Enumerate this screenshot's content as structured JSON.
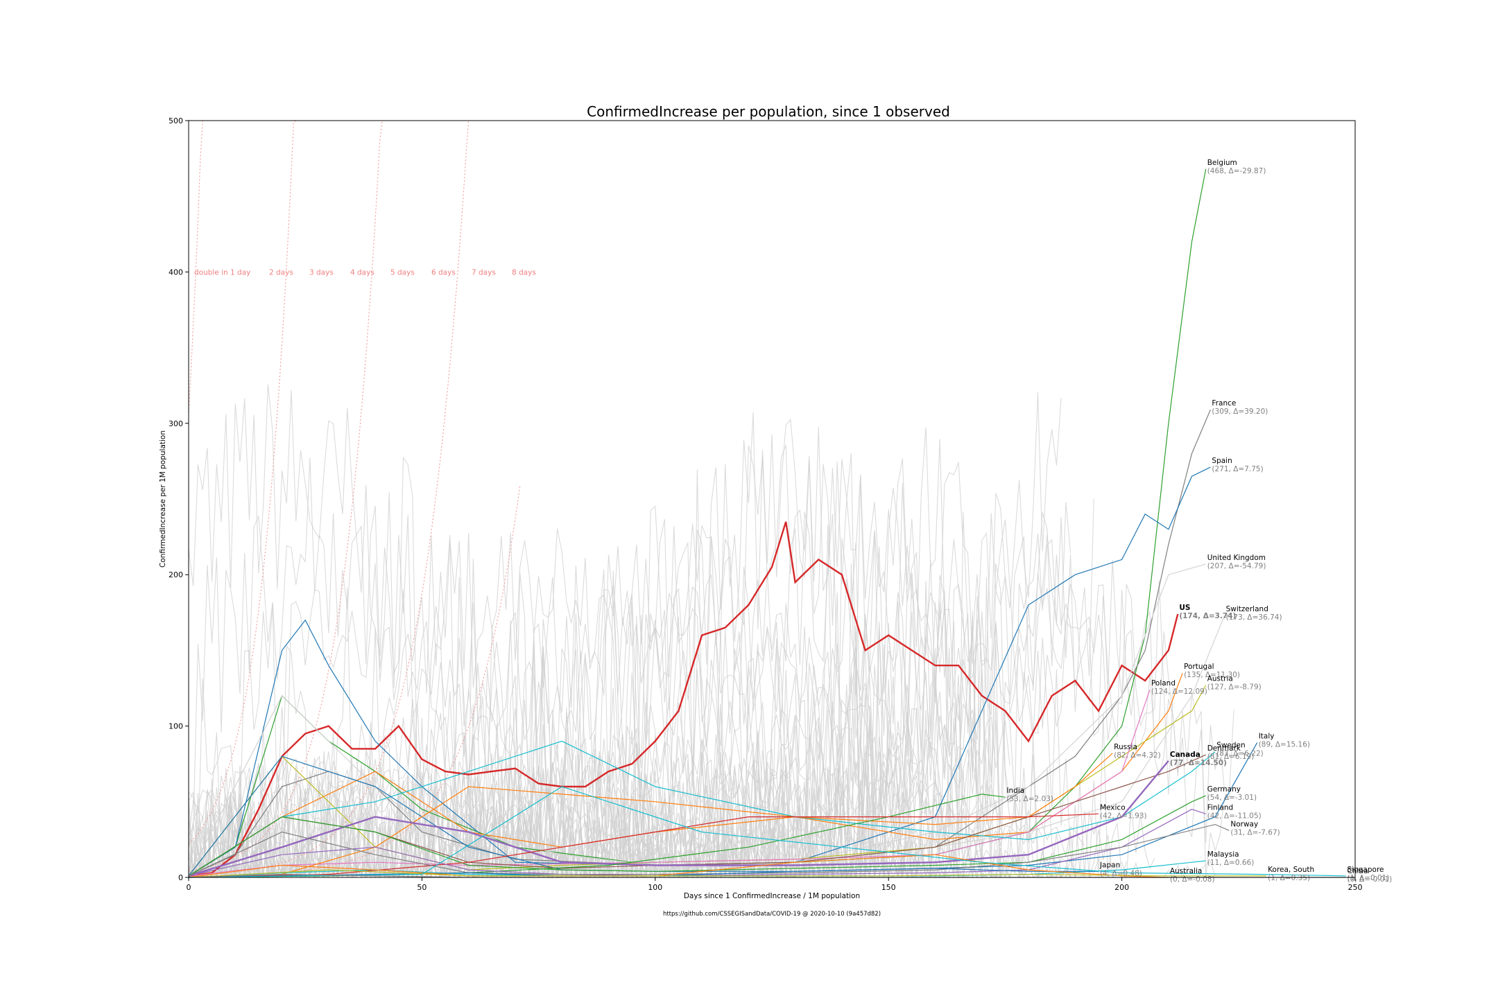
{
  "chart_data": {
    "type": "line",
    "title": "ConfirmedIncrease per population, since 1 observed",
    "xlabel": "Days since 1 ConfirmedIncrease / 1M population",
    "ylabel": "ConfirmedIncrease per 1M population",
    "source": "https://github.com/CSSEGISandData/COVID-19 @ 2020-10-10 (9a457d82)",
    "xlim": [
      0,
      250
    ],
    "ylim": [
      0,
      500
    ],
    "xticks": [
      "0",
      "50",
      "100",
      "150",
      "200",
      "250"
    ],
    "yticks": [
      "0",
      "100",
      "200",
      "300",
      "400",
      "500"
    ],
    "grid": false,
    "doubling_lines": [
      "double in 1 day",
      "2 days",
      "3 days",
      "4 days",
      "5 days",
      "6 days",
      "7 days",
      "8 days"
    ],
    "series": [
      {
        "name": "US",
        "color": "#d62728",
        "bold": true,
        "sub": "(174, Δ=3.74)",
        "x": [
          0,
          5,
          10,
          15,
          20,
          25,
          30,
          35,
          40,
          45,
          50,
          55,
          60,
          65,
          70,
          75,
          80,
          85,
          90,
          95,
          100,
          105,
          110,
          115,
          120,
          125,
          128,
          130,
          135,
          140,
          145,
          150,
          155,
          160,
          165,
          170,
          175,
          180,
          185,
          190,
          195,
          200,
          205,
          210,
          212
        ],
        "values": [
          1,
          3,
          15,
          45,
          80,
          95,
          100,
          85,
          85,
          100,
          78,
          70,
          68,
          70,
          72,
          62,
          60,
          60,
          70,
          75,
          90,
          110,
          160,
          165,
          180,
          205,
          235,
          195,
          210,
          200,
          150,
          160,
          150,
          140,
          140,
          120,
          110,
          90,
          120,
          130,
          110,
          140,
          130,
          150,
          174
        ]
      },
      {
        "name": "Belgium",
        "color": "#2ca02c",
        "sub": "(468, Δ=-29.87)",
        "x": [
          0,
          10,
          20,
          30,
          40,
          50,
          70,
          100,
          130,
          160,
          180,
          190,
          200,
          205,
          210,
          215,
          218
        ],
        "values": [
          1,
          20,
          120,
          90,
          70,
          45,
          20,
          8,
          10,
          15,
          30,
          60,
          100,
          160,
          300,
          420,
          468
        ]
      },
      {
        "name": "France",
        "color": "#7f7f7f",
        "sub": "(309, Δ=39.20)",
        "x": [
          0,
          10,
          20,
          30,
          40,
          50,
          70,
          100,
          130,
          160,
          180,
          190,
          200,
          205,
          210,
          215,
          219
        ],
        "values": [
          1,
          15,
          60,
          70,
          60,
          30,
          12,
          8,
          10,
          20,
          60,
          80,
          120,
          150,
          220,
          280,
          309
        ]
      },
      {
        "name": "Spain",
        "color": "#1f77b4",
        "sub": "(271, Δ=7.75)",
        "x": [
          0,
          10,
          20,
          25,
          30,
          40,
          50,
          70,
          100,
          130,
          160,
          180,
          190,
          200,
          205,
          210,
          215,
          219
        ],
        "values": [
          1,
          20,
          150,
          170,
          140,
          90,
          60,
          10,
          8,
          10,
          40,
          180,
          200,
          210,
          240,
          230,
          265,
          271
        ]
      },
      {
        "name": "United Kingdom",
        "color": "#d3d3d3",
        "sub": "(207, Δ=-54.79)",
        "x": [
          0,
          20,
          40,
          60,
          80,
          100,
          130,
          160,
          180,
          200,
          210,
          218
        ],
        "values": [
          1,
          40,
          70,
          30,
          15,
          8,
          10,
          30,
          60,
          120,
          200,
          207
        ]
      },
      {
        "name": "Switzerland",
        "color": "#d3d3d3",
        "sub": "(173, Δ=36.74)",
        "x": [
          0,
          20,
          40,
          60,
          80,
          100,
          130,
          160,
          180,
          200,
          215,
          222
        ],
        "values": [
          1,
          120,
          60,
          10,
          6,
          5,
          10,
          20,
          30,
          50,
          120,
          173
        ]
      },
      {
        "name": "Portugal",
        "color": "#ff7f0e",
        "sub": "(135, Δ=11.30)",
        "x": [
          0,
          20,
          40,
          60,
          80,
          100,
          130,
          160,
          180,
          200,
          210,
          213
        ],
        "values": [
          1,
          40,
          70,
          30,
          20,
          30,
          40,
          25,
          30,
          70,
          110,
          135
        ]
      },
      {
        "name": "Austria",
        "color": "#bcbd22",
        "sub": "(127, Δ=-8.79)",
        "x": [
          0,
          20,
          40,
          60,
          80,
          100,
          130,
          160,
          180,
          200,
          215,
          218
        ],
        "values": [
          1,
          80,
          20,
          5,
          8,
          10,
          12,
          20,
          40,
          80,
          110,
          127
        ]
      },
      {
        "name": "Poland",
        "color": "#e377c2",
        "sub": "(124, Δ=12.09)",
        "x": [
          0,
          20,
          40,
          60,
          80,
          100,
          130,
          160,
          180,
          200,
          206
        ],
        "values": [
          1,
          8,
          10,
          8,
          9,
          10,
          12,
          15,
          30,
          70,
          124
        ]
      },
      {
        "name": "Sweden",
        "color": "#17becf",
        "sub": "(83, Δ=6.22)",
        "x": [
          0,
          20,
          40,
          60,
          80,
          100,
          130,
          160,
          180,
          200,
          215,
          220
        ],
        "values": [
          1,
          40,
          50,
          70,
          90,
          60,
          40,
          30,
          25,
          40,
          70,
          83
        ]
      },
      {
        "name": "Italy",
        "color": "#1f77b4",
        "sub": "(89, Δ=15.16)",
        "x": [
          0,
          20,
          40,
          60,
          80,
          100,
          130,
          160,
          180,
          200,
          220,
          229
        ],
        "values": [
          1,
          80,
          60,
          20,
          5,
          4,
          4,
          6,
          8,
          15,
          40,
          89
        ]
      },
      {
        "name": "Denmark",
        "color": "#8c564b",
        "sub": "(81, Δ=6.19)",
        "x": [
          0,
          20,
          40,
          60,
          80,
          100,
          130,
          160,
          180,
          200,
          210,
          218
        ],
        "values": [
          1,
          40,
          30,
          10,
          6,
          8,
          10,
          20,
          40,
          60,
          70,
          81
        ]
      },
      {
        "name": "Russia",
        "color": "#ff7f0e",
        "sub": "(82, Δ=4.32)",
        "x": [
          0,
          20,
          40,
          60,
          80,
          100,
          130,
          160,
          180,
          190,
          198
        ],
        "values": [
          0,
          2,
          20,
          60,
          55,
          50,
          40,
          35,
          40,
          60,
          82
        ]
      },
      {
        "name": "Canada",
        "color": "#9467bd",
        "bold": true,
        "sub": "(77, Δ=14.50)",
        "x": [
          0,
          20,
          40,
          60,
          80,
          100,
          130,
          160,
          180,
          200,
          210
        ],
        "values": [
          1,
          20,
          40,
          30,
          10,
          8,
          8,
          10,
          15,
          40,
          77
        ]
      },
      {
        "name": "Germany",
        "color": "#2ca02c",
        "sub": "(54, Δ=-3.01)",
        "x": [
          0,
          20,
          40,
          60,
          80,
          100,
          130,
          160,
          180,
          200,
          215,
          218
        ],
        "values": [
          1,
          40,
          30,
          8,
          5,
          4,
          6,
          8,
          10,
          25,
          50,
          54
        ]
      },
      {
        "name": "India",
        "color": "#2ca02c",
        "sub": "(53, Δ=2.03)",
        "x": [
          0,
          30,
          60,
          90,
          120,
          150,
          170,
          175
        ],
        "values": [
          0,
          1,
          3,
          8,
          20,
          40,
          55,
          53
        ]
      },
      {
        "name": "Mexico",
        "color": "#d62728",
        "sub": "(42, Δ=1.93)",
        "x": [
          0,
          30,
          60,
          90,
          120,
          150,
          180,
          195
        ],
        "values": [
          0,
          2,
          10,
          25,
          40,
          40,
          40,
          42
        ]
      },
      {
        "name": "Finland",
        "color": "#9467bd",
        "sub": "(42, Δ=-11.05)",
        "x": [
          0,
          20,
          40,
          60,
          80,
          100,
          130,
          160,
          180,
          200,
          215,
          218
        ],
        "values": [
          1,
          15,
          20,
          5,
          2,
          1,
          2,
          3,
          5,
          20,
          45,
          42
        ]
      },
      {
        "name": "Norway",
        "color": "#7f7f7f",
        "sub": "(31, Δ=-7.67)",
        "x": [
          0,
          20,
          40,
          60,
          80,
          100,
          130,
          160,
          180,
          200,
          220,
          223
        ],
        "values": [
          1,
          30,
          15,
          3,
          2,
          2,
          3,
          5,
          10,
          20,
          35,
          31
        ]
      },
      {
        "name": "Malaysia",
        "color": "#17becf",
        "sub": "(11, Δ=0.66)",
        "x": [
          0,
          20,
          40,
          60,
          80,
          100,
          130,
          160,
          180,
          200,
          215,
          218
        ],
        "values": [
          0,
          3,
          5,
          2,
          1,
          1,
          1,
          1,
          2,
          5,
          10,
          11
        ]
      },
      {
        "name": "Japan",
        "color": "#1f77b4",
        "sub": "(4, Δ=0.48)",
        "x": [
          0,
          20,
          40,
          60,
          80,
          100,
          130,
          160,
          180,
          195
        ],
        "values": [
          0,
          1,
          2,
          3,
          1,
          1,
          4,
          6,
          4,
          4
        ]
      },
      {
        "name": "Australia",
        "color": "#ff7f0e",
        "sub": "(0, Δ=-0.08)",
        "x": [
          0,
          20,
          40,
          60,
          80,
          100,
          130,
          160,
          180,
          200,
          210
        ],
        "values": [
          0,
          8,
          5,
          1,
          1,
          1,
          10,
          15,
          5,
          1,
          0
        ]
      },
      {
        "name": "Korea, South",
        "color": "#bcbd22",
        "sub": "(1, Δ=0.35)",
        "x": [
          0,
          30,
          60,
          90,
          120,
          150,
          180,
          210,
          231
        ],
        "values": [
          0,
          5,
          1,
          1,
          1,
          1,
          2,
          1,
          1
        ]
      },
      {
        "name": "Singapore",
        "color": "#17becf",
        "sub": "(1, Δ=0.01)",
        "x": [
          0,
          50,
          80,
          110,
          140,
          170,
          200,
          230,
          248
        ],
        "values": [
          0,
          2,
          60,
          30,
          20,
          10,
          3,
          2,
          1
        ]
      },
      {
        "name": "China",
        "color": "#7f7f7f",
        "sub": "(0, Δ=-0.01)",
        "x": [
          0,
          20,
          40,
          60,
          80,
          120,
          160,
          200,
          248
        ],
        "values": [
          0,
          2,
          1,
          0,
          0,
          0,
          0,
          0,
          0
        ]
      }
    ]
  }
}
